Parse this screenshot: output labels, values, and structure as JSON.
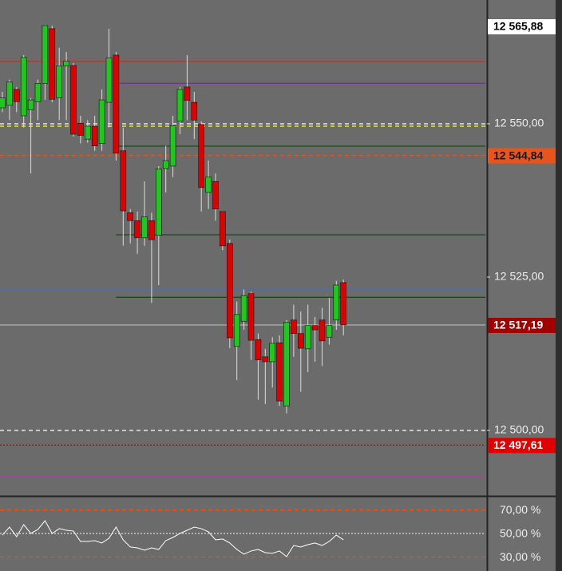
{
  "chart_data": [
    {
      "type": "candlestick",
      "up_color": "#1ec81e",
      "down_color": "#e00000",
      "wick_color": "#dddddd",
      "open": [
        12552.6,
        12553.0,
        12555.6,
        12551.3,
        12552.3,
        12553.6,
        12556.6,
        12565.5,
        12554.2,
        12559.4,
        12559.5,
        12550.1,
        12547.5,
        12549.6,
        12546.8,
        12553.5,
        12561.2,
        12545.6,
        12535.5,
        12534.2,
        12531.4,
        12534.2,
        12531.8,
        12542.7,
        12543.1,
        12550.4,
        12556.0,
        12553.5,
        12549.9,
        12538.8,
        12540.6,
        12535.7,
        12530.5,
        12513.7,
        12517.8,
        12522.3,
        12514.8,
        12512.0,
        12511.2,
        12514.3,
        12504.0,
        12518.0,
        12515.8,
        12513.3,
        12517.1,
        12518.0,
        12515.2,
        12518.0,
        12524.1
      ],
      "high": [
        12555.2,
        12557.2,
        12556.0,
        12561.2,
        12554.2,
        12557.2,
        12566.1,
        12566.0,
        12562.4,
        12561.7,
        12559.9,
        12551.3,
        12550.6,
        12551.3,
        12555.6,
        12565.5,
        12561.7,
        12549.4,
        12536.1,
        12535.7,
        12540.6,
        12535.5,
        12543.1,
        12546.4,
        12551.3,
        12556.0,
        12561.2,
        12555.2,
        12550.4,
        12544.0,
        12541.9,
        12535.8,
        12531.1,
        12521.0,
        12523.0,
        12522.6,
        12515.8,
        12513.3,
        12515.2,
        12515.5,
        12518.0,
        12520.5,
        12519.4,
        12520.5,
        12518.5,
        12520.0,
        12521.6,
        12524.4,
        12524.6
      ],
      "low": [
        12551.9,
        12550.6,
        12551.9,
        12549.4,
        12541.9,
        12550.6,
        12553.9,
        12553.5,
        12550.6,
        12550.6,
        12547.9,
        12546.8,
        12546.9,
        12545.6,
        12545.6,
        12549.4,
        12544.0,
        12530.1,
        12530.5,
        12528.8,
        12530.1,
        12520.8,
        12523.7,
        12538.8,
        12541.3,
        12548.3,
        12550.6,
        12547.5,
        12535.7,
        12536.1,
        12534.2,
        12529.4,
        12513.4,
        12508.2,
        12516.4,
        12511.5,
        12505.0,
        12504.3,
        12507.0,
        12504.0,
        12502.8,
        12512.0,
        12506.3,
        12509.5,
        12511.2,
        12510.5,
        12514.0,
        12516.4,
        12515.5
      ],
      "close": [
        12554.2,
        12556.8,
        12553.6,
        12560.8,
        12553.9,
        12556.6,
        12566.0,
        12554.0,
        12559.4,
        12560.2,
        12548.3,
        12548.1,
        12549.6,
        12546.4,
        12553.9,
        12560.7,
        12545.2,
        12535.8,
        12534.2,
        12531.4,
        12534.8,
        12531.1,
        12542.6,
        12544.0,
        12549.7,
        12555.6,
        12553.8,
        12550.6,
        12539.6,
        12541.3,
        12536.1,
        12530.1,
        12515.1,
        12518.9,
        12522.0,
        12514.7,
        12511.5,
        12511.2,
        12514.2,
        12504.8,
        12517.6,
        12515.8,
        12513.4,
        12517.1,
        12516.4,
        12514.6,
        12517.1,
        12523.7,
        12517.2
      ],
      "ylim": [
        12489.45,
        12570.18
      ],
      "yticks": [
        {
          "value": 12550,
          "label": "12 550,00"
        },
        {
          "value": 12525,
          "label": "12 525,00"
        },
        {
          "value": 12500,
          "label": "12 500,00"
        }
      ],
      "levels": [
        {
          "value": 12560.16,
          "color": "#c8302a",
          "style": "solid"
        },
        {
          "value": 12556.6,
          "color": "#7030a0",
          "style": "solid",
          "from": 16
        },
        {
          "value": 12550.0,
          "color": "#ffffff",
          "style": "dashed"
        },
        {
          "value": 12549.6,
          "color": "#f2f200",
          "style": "dashed"
        },
        {
          "value": 12546.35,
          "color": "#1d4a1d",
          "style": "solid",
          "from": 16
        },
        {
          "value": 12544.84,
          "color": "#e8541c",
          "style": "dashed"
        },
        {
          "value": 12531.9,
          "color": "#1d4a1d",
          "style": "solid",
          "from": 16
        },
        {
          "value": 12522.9,
          "color": "#3a6fd8",
          "style": "solid"
        },
        {
          "value": 12521.7,
          "color": "#1d4a1d",
          "style": "solid",
          "from": 16
        },
        {
          "value": 12517.19,
          "color": "#aaaaaa",
          "style": "solid"
        },
        {
          "value": 12500.0,
          "color": "#ffffff",
          "style": "dashed"
        },
        {
          "value": 12497.61,
          "color": "#c00000",
          "style": "dotted"
        },
        {
          "value": 12492.6,
          "color": "#c030c0",
          "style": "solid"
        }
      ],
      "markers": [
        {
          "value": 12565.88,
          "label": "12 565,88",
          "bg": "#ffffff",
          "fg": "#000000"
        },
        {
          "value": 12544.84,
          "label": "12 544,84",
          "bg": "#e8541c",
          "fg": "#1a1a1a"
        },
        {
          "value": 12517.19,
          "label": "12 517,19",
          "bg": "#a00000",
          "fg": "#ffffff"
        },
        {
          "value": 12497.61,
          "label": "12 497,61",
          "bg": "#e00000",
          "fg": "#ffffff"
        }
      ]
    },
    {
      "type": "line",
      "color": "#ffffff",
      "values": [
        48.6,
        55.4,
        47.3,
        57.5,
        50,
        53.4,
        60.8,
        50,
        54.1,
        52.7,
        52.0,
        43.2,
        43.2,
        43.9,
        41.9,
        45.9,
        55.4,
        44.6,
        38.5,
        37.8,
        35.8,
        37.8,
        36.4,
        43.9,
        46.6,
        50,
        52.7,
        55.4,
        54.1,
        51.4,
        44.6,
        45.3,
        41.9,
        36.4,
        32.4,
        35.1,
        36.4,
        33.7,
        33.1,
        35.1,
        30.3,
        39.8,
        38.5,
        40.5,
        41.9,
        39.8,
        43.2,
        48.6,
        44.6
      ],
      "ylim": [
        18.1,
        81.2
      ],
      "yticks": [
        {
          "value": 70,
          "label": "70,00 %",
          "color": "#e8541c",
          "style": "dashed"
        },
        {
          "value": 50,
          "label": "50,00 %",
          "color": "#dddddd",
          "style": "dotted"
        },
        {
          "value": 30,
          "label": "30,00 %",
          "color": "#e8541c",
          "style": "dashed"
        }
      ]
    }
  ]
}
